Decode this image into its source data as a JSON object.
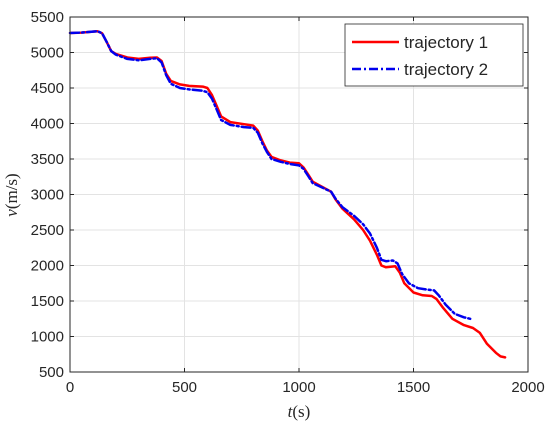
{
  "chart_data": {
    "type": "line",
    "title": "",
    "xlabel": {
      "var": "t",
      "unit": "(s)"
    },
    "ylabel": {
      "var": "v",
      "unit": "(m/s)"
    },
    "xlim": [
      0,
      2000
    ],
    "ylim": [
      500,
      5500
    ],
    "xticks": [
      0,
      500,
      1000,
      1500,
      2000
    ],
    "yticks": [
      500,
      1000,
      1500,
      2000,
      2500,
      3000,
      3500,
      4000,
      4500,
      5000,
      5500
    ],
    "grid": true,
    "legend_position": "top-right",
    "series": [
      {
        "name": "trajectory 1",
        "color": "#ff0000",
        "style": "solid",
        "points": [
          [
            0,
            5275
          ],
          [
            50,
            5280
          ],
          [
            100,
            5295
          ],
          [
            120,
            5300
          ],
          [
            140,
            5270
          ],
          [
            160,
            5150
          ],
          [
            180,
            5020
          ],
          [
            200,
            4980
          ],
          [
            250,
            4930
          ],
          [
            300,
            4910
          ],
          [
            350,
            4925
          ],
          [
            380,
            4930
          ],
          [
            400,
            4880
          ],
          [
            420,
            4700
          ],
          [
            440,
            4600
          ],
          [
            480,
            4550
          ],
          [
            520,
            4530
          ],
          [
            580,
            4520
          ],
          [
            600,
            4500
          ],
          [
            620,
            4400
          ],
          [
            640,
            4250
          ],
          [
            660,
            4100
          ],
          [
            700,
            4020
          ],
          [
            760,
            3990
          ],
          [
            800,
            3970
          ],
          [
            820,
            3900
          ],
          [
            840,
            3750
          ],
          [
            860,
            3620
          ],
          [
            880,
            3530
          ],
          [
            920,
            3480
          ],
          [
            960,
            3450
          ],
          [
            1000,
            3440
          ],
          [
            1020,
            3380
          ],
          [
            1040,
            3280
          ],
          [
            1060,
            3180
          ],
          [
            1100,
            3110
          ],
          [
            1140,
            3040
          ],
          [
            1160,
            2930
          ],
          [
            1190,
            2800
          ],
          [
            1240,
            2650
          ],
          [
            1280,
            2500
          ],
          [
            1310,
            2350
          ],
          [
            1340,
            2150
          ],
          [
            1360,
            2000
          ],
          [
            1380,
            1975
          ],
          [
            1420,
            1990
          ],
          [
            1440,
            1900
          ],
          [
            1460,
            1750
          ],
          [
            1500,
            1620
          ],
          [
            1540,
            1580
          ],
          [
            1580,
            1570
          ],
          [
            1600,
            1530
          ],
          [
            1630,
            1400
          ],
          [
            1670,
            1250
          ],
          [
            1720,
            1160
          ],
          [
            1760,
            1120
          ],
          [
            1790,
            1050
          ],
          [
            1820,
            900
          ],
          [
            1860,
            770
          ],
          [
            1880,
            720
          ],
          [
            1900,
            705
          ]
        ]
      },
      {
        "name": "trajectory 2",
        "color": "#0000ee",
        "style": "dashdot",
        "points": [
          [
            0,
            5275
          ],
          [
            50,
            5280
          ],
          [
            100,
            5295
          ],
          [
            120,
            5300
          ],
          [
            140,
            5270
          ],
          [
            160,
            5150
          ],
          [
            180,
            5020
          ],
          [
            200,
            4970
          ],
          [
            250,
            4910
          ],
          [
            300,
            4890
          ],
          [
            350,
            4910
          ],
          [
            380,
            4920
          ],
          [
            400,
            4860
          ],
          [
            420,
            4680
          ],
          [
            440,
            4560
          ],
          [
            480,
            4500
          ],
          [
            520,
            4480
          ],
          [
            580,
            4460
          ],
          [
            600,
            4440
          ],
          [
            620,
            4350
          ],
          [
            640,
            4200
          ],
          [
            660,
            4050
          ],
          [
            700,
            3980
          ],
          [
            760,
            3950
          ],
          [
            800,
            3940
          ],
          [
            820,
            3870
          ],
          [
            840,
            3720
          ],
          [
            860,
            3600
          ],
          [
            880,
            3500
          ],
          [
            920,
            3460
          ],
          [
            960,
            3430
          ],
          [
            1000,
            3410
          ],
          [
            1020,
            3360
          ],
          [
            1040,
            3260
          ],
          [
            1060,
            3160
          ],
          [
            1100,
            3100
          ],
          [
            1140,
            3040
          ],
          [
            1160,
            2940
          ],
          [
            1190,
            2820
          ],
          [
            1240,
            2700
          ],
          [
            1280,
            2580
          ],
          [
            1310,
            2450
          ],
          [
            1340,
            2250
          ],
          [
            1360,
            2080
          ],
          [
            1380,
            2060
          ],
          [
            1410,
            2070
          ],
          [
            1430,
            2030
          ],
          [
            1450,
            1880
          ],
          [
            1480,
            1750
          ],
          [
            1520,
            1680
          ],
          [
            1560,
            1660
          ],
          [
            1590,
            1650
          ],
          [
            1610,
            1580
          ],
          [
            1640,
            1450
          ],
          [
            1680,
            1320
          ],
          [
            1720,
            1270
          ],
          [
            1760,
            1240
          ]
        ]
      }
    ]
  }
}
